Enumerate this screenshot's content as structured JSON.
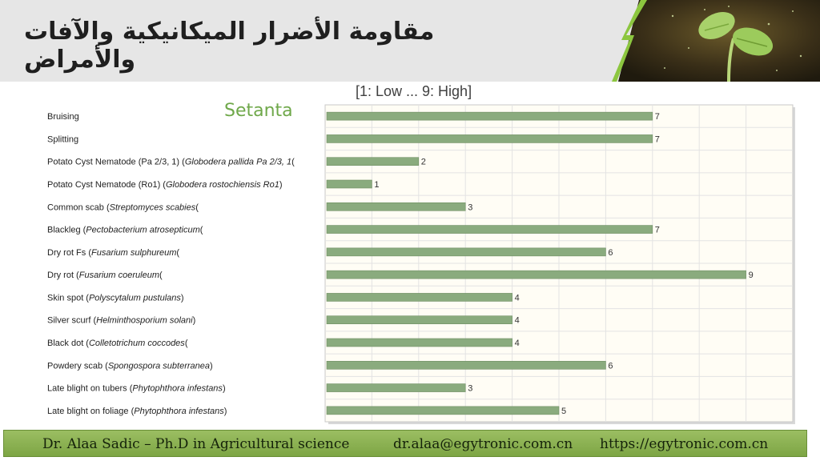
{
  "header": {
    "title": "مقاومة الأضرار الميكانيكية والآفات والأمراض"
  },
  "chart": {
    "scale_note": "[1: Low ... 9: High]"
  },
  "chart_data": {
    "type": "bar",
    "orientation": "horizontal",
    "title": "Setanta",
    "xlim": [
      0,
      10
    ],
    "grid": true,
    "bar_color": "#8aab7e",
    "plot_background": "#fffdf5",
    "categories": [
      {
        "label": "Bruising"
      },
      {
        "label": "Splitting"
      },
      {
        "label": "Potato Cyst Nematode (Pa 2/3, 1) (",
        "italic": "Globodera pallida Pa 2/3, 1",
        "suffix": "("
      },
      {
        "label": "Potato Cyst Nematode (Ro1) (",
        "italic": "Globodera rostochiensis Ro1",
        "suffix": ")"
      },
      {
        "label": "Common scab (",
        "italic": "Streptomyces scabies",
        "suffix": "("
      },
      {
        "label": "Blackleg  (",
        "italic": "Pectobacterium atrosepticum",
        "suffix": "("
      },
      {
        "label": "Dry rot Fs (",
        "italic": "Fusarium sulphureum",
        "suffix": "("
      },
      {
        "label": "Dry rot (",
        "italic": "Fusarium coeruleum",
        "suffix": "("
      },
      {
        "label": "Skin spot (",
        "italic": "Polyscytalum pustulans",
        "suffix": ")"
      },
      {
        "label": "Silver scurf (",
        "italic": "Helminthosporium solani",
        "suffix": ")"
      },
      {
        "label": "Black dot (",
        "italic": "Colletotrichum coccodes",
        "suffix": "("
      },
      {
        "label": "Powdery scab (",
        "italic": "Spongospora subterranea",
        "suffix": ")"
      },
      {
        "label": "Late blight on tubers (",
        "italic": "Phytophthora infestans",
        "suffix": ")"
      },
      {
        "label": "Late blight on foliage (",
        "italic": "Phytophthora infestans",
        "suffix": ")"
      }
    ],
    "values": [
      7,
      7,
      2,
      1,
      3,
      7,
      6,
      9,
      4,
      4,
      4,
      6,
      3,
      5
    ]
  },
  "footer": {
    "name": "Dr. Alaa Sadic – Ph.D in Agricultural science",
    "email": "dr.alaa@egytronic.com.cn",
    "website": "https://egytronic.com.cn"
  }
}
